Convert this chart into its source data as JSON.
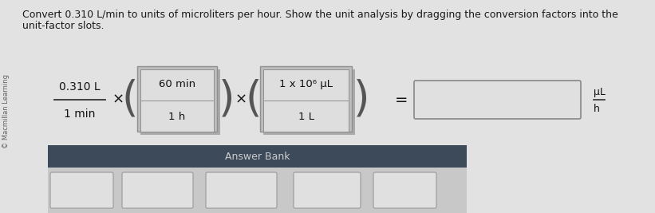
{
  "background_color": "#e2e2e2",
  "title_text": "Convert 0.310 L/min to units of microliters per hour. Show the unit analysis by dragging the conversion factors into the",
  "title_text2": "unit-factor slots.",
  "title_fontsize": 9.0,
  "title_color": "#1a1a1a",
  "watermark": "© Macmillan Learning",
  "fraction_num": "0.310 L",
  "fraction_den": "1 min",
  "box1_top": "60 min",
  "box1_bot": "1 h",
  "box2_top": "1 x 10⁶ μL",
  "box2_bot": "1 L",
  "answer_bank_label": "Answer Bank",
  "box_outer_color": "#c8c8c8",
  "box_inner_top_color": "#e0e0e0",
  "box_inner_bot_color": "#d4d4d4",
  "box_border_color": "#999999",
  "box_dark_divider": "#888888",
  "result_box_color": "#e0e0e0",
  "result_box_border": "#888888",
  "answer_bank_bg": "#3d4a5a",
  "answer_bank_label_color": "#cccccc",
  "answer_bank_bottom_bg": "#c8c8c8",
  "small_box_color": "#e0e0e0",
  "small_box_border": "#999999",
  "unit_result": "μL",
  "unit_result_den": "h",
  "paren_color": "#555555",
  "multiply_color": "#111111",
  "text_color": "#111111",
  "fraction_bar_color": "#333333"
}
